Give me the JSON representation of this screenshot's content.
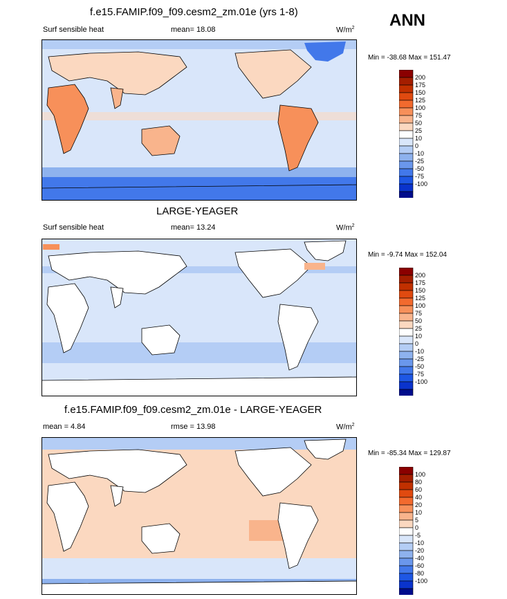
{
  "season": "ANN",
  "panels": [
    {
      "title": "f.e15.FAMIP.f09_f09.cesm2_zm.01e (yrs 1-8)",
      "left_label": "Surf sensible heat",
      "stat_label": "mean=",
      "stat_value": "18.08",
      "units": "W/m",
      "units_sup": "2",
      "minmax": "Min = -38.68 Max = 151.47",
      "colorbar_levels": [
        "200",
        "175",
        "150",
        "125",
        "100",
        "75",
        "50",
        "25",
        "10",
        "0",
        "-10",
        "-25",
        "-50",
        "-75",
        "-100"
      ]
    },
    {
      "title": "LARGE-YEAGER",
      "left_label": "Surf sensible heat",
      "stat_label": "mean=",
      "stat_value": "13.24",
      "units": "W/m",
      "units_sup": "2",
      "minmax": "Min =  -9.74 Max = 152.04",
      "colorbar_levels": [
        "200",
        "175",
        "150",
        "125",
        "100",
        "75",
        "50",
        "25",
        "10",
        "0",
        "-10",
        "-25",
        "-50",
        "-75",
        "-100"
      ]
    },
    {
      "title": "f.e15.FAMIP.f09_f09.cesm2_zm.01e - LARGE-YEAGER",
      "left_label": "mean =   4.84",
      "stat_label": "rmse =",
      "stat_value": "13.98",
      "units": "W/m",
      "units_sup": "2",
      "minmax": "Min = -85.34 Max = 129.87",
      "colorbar_levels": [
        "100",
        "80",
        "60",
        "40",
        "20",
        "10",
        "5",
        "0",
        "-5",
        "-10",
        "-20",
        "-40",
        "-60",
        "-80",
        "-100"
      ]
    }
  ],
  "colors": {
    "scale": [
      "#8b0000",
      "#a41e00",
      "#c13000",
      "#e04a10",
      "#f26a2e",
      "#f7905a",
      "#f9b48c",
      "#fbd8c0",
      "#ffffff",
      "#d9e6fa",
      "#b4cdf5",
      "#8eb2ee",
      "#6a97ec",
      "#4278ea",
      "#1e57e4",
      "#0a33cc",
      "#000c8c"
    ],
    "land_mask": "#ffffff",
    "coast": "#000000"
  }
}
